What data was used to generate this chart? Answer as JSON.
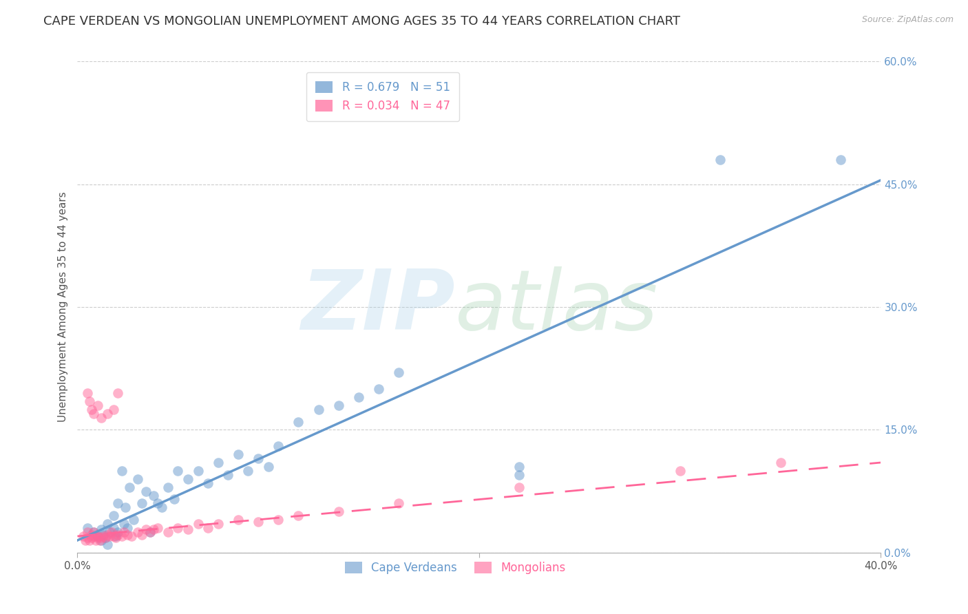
{
  "title": "CAPE VERDEAN VS MONGOLIAN UNEMPLOYMENT AMONG AGES 35 TO 44 YEARS CORRELATION CHART",
  "source": "Source: ZipAtlas.com",
  "ylabel": "Unemployment Among Ages 35 to 44 years",
  "xlim": [
    0.0,
    0.4
  ],
  "ylim": [
    0.0,
    0.6
  ],
  "xticks": [
    0.0,
    0.4
  ],
  "xtick_labels": [
    "0.0%",
    "40.0%"
  ],
  "yticks_right": [
    0.0,
    0.15,
    0.3,
    0.45,
    0.6
  ],
  "ytick_labels_right": [
    "0.0%",
    "15.0%",
    "30.0%",
    "45.0%",
    "60.0%"
  ],
  "blue_color": "#6699CC",
  "pink_color": "#FF6699",
  "blue_R": 0.679,
  "blue_N": 51,
  "pink_R": 0.034,
  "pink_N": 47,
  "watermark_zip": "ZIP",
  "watermark_atlas": "atlas",
  "title_fontsize": 13,
  "label_fontsize": 11,
  "tick_fontsize": 11,
  "blue_scatter_x": [
    0.005,
    0.008,
    0.01,
    0.012,
    0.012,
    0.013,
    0.014,
    0.015,
    0.015,
    0.016,
    0.018,
    0.018,
    0.019,
    0.02,
    0.02,
    0.022,
    0.023,
    0.024,
    0.025,
    0.026,
    0.028,
    0.03,
    0.032,
    0.034,
    0.036,
    0.038,
    0.04,
    0.042,
    0.045,
    0.048,
    0.05,
    0.055,
    0.06,
    0.065,
    0.07,
    0.075,
    0.08,
    0.085,
    0.09,
    0.095,
    0.1,
    0.11,
    0.12,
    0.13,
    0.14,
    0.15,
    0.16,
    0.22,
    0.22,
    0.32,
    0.38
  ],
  "blue_scatter_y": [
    0.03,
    0.025,
    0.02,
    0.015,
    0.028,
    0.022,
    0.018,
    0.035,
    0.01,
    0.025,
    0.03,
    0.045,
    0.02,
    0.025,
    0.06,
    0.1,
    0.035,
    0.055,
    0.03,
    0.08,
    0.04,
    0.09,
    0.06,
    0.075,
    0.025,
    0.07,
    0.06,
    0.055,
    0.08,
    0.065,
    0.1,
    0.09,
    0.1,
    0.085,
    0.11,
    0.095,
    0.12,
    0.1,
    0.115,
    0.105,
    0.13,
    0.16,
    0.175,
    0.18,
    0.19,
    0.2,
    0.22,
    0.095,
    0.105,
    0.48,
    0.48
  ],
  "pink_scatter_x": [
    0.003,
    0.004,
    0.005,
    0.005,
    0.006,
    0.007,
    0.007,
    0.008,
    0.008,
    0.009,
    0.01,
    0.01,
    0.011,
    0.012,
    0.013,
    0.014,
    0.015,
    0.016,
    0.017,
    0.018,
    0.019,
    0.02,
    0.022,
    0.023,
    0.025,
    0.027,
    0.03,
    0.032,
    0.034,
    0.036,
    0.038,
    0.04,
    0.045,
    0.05,
    0.055,
    0.06,
    0.065,
    0.07,
    0.08,
    0.09,
    0.1,
    0.11,
    0.13,
    0.16,
    0.22,
    0.3,
    0.35
  ],
  "pink_scatter_y": [
    0.02,
    0.015,
    0.018,
    0.025,
    0.015,
    0.018,
    0.022,
    0.02,
    0.025,
    0.015,
    0.018,
    0.02,
    0.015,
    0.018,
    0.02,
    0.018,
    0.022,
    0.02,
    0.025,
    0.02,
    0.018,
    0.022,
    0.02,
    0.025,
    0.022,
    0.02,
    0.025,
    0.022,
    0.028,
    0.025,
    0.028,
    0.03,
    0.025,
    0.03,
    0.028,
    0.035,
    0.03,
    0.035,
    0.04,
    0.038,
    0.04,
    0.045,
    0.05,
    0.06,
    0.08,
    0.1,
    0.11
  ],
  "blue_line_x": [
    0.0,
    0.4
  ],
  "blue_line_y": [
    0.015,
    0.455
  ],
  "pink_line_x": [
    0.0,
    0.4
  ],
  "pink_line_y": [
    0.02,
    0.11
  ],
  "extra_pink_x": [
    0.005,
    0.006,
    0.007,
    0.008,
    0.01,
    0.012,
    0.015,
    0.018,
    0.02
  ],
  "extra_pink_y": [
    0.195,
    0.185,
    0.175,
    0.17,
    0.18,
    0.165,
    0.17,
    0.175,
    0.195
  ]
}
